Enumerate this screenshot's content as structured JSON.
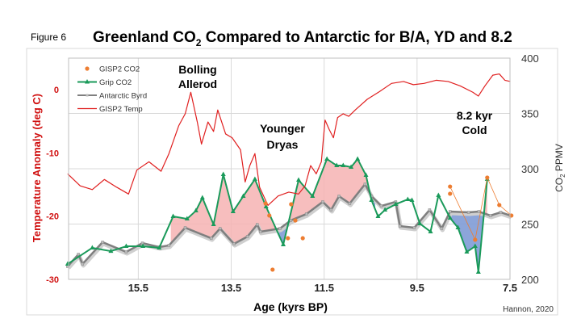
{
  "figure_label": "Figure 6",
  "credit": "Hannon, 2020",
  "chart_data": {
    "type": "line",
    "title": "Greenland CO",
    "title_sub": "2",
    "title_rest": " Compared to Antarctic for B/A, YD and 8.2",
    "xlabel": "Age (kyrs BP)",
    "ylabel_left": "Temperature Anomaly (deg C)",
    "ylabel_right": "CO",
    "ylabel_right_sub": "2",
    "ylabel_right_rest": " PPMV",
    "xlim": [
      17.0,
      7.5
    ],
    "ylim_left": [
      -30,
      5
    ],
    "ylim_right": [
      200,
      400
    ],
    "xticks": [
      "15.5",
      "13.5",
      "11.5",
      "9.5",
      "7.5"
    ],
    "yticks_left": [
      "0",
      "-10",
      "-20",
      "-30"
    ],
    "yticks_right": [
      "400",
      "350",
      "300",
      "250",
      "200"
    ],
    "grid": true,
    "legend_placement": "top-left",
    "colors": {
      "gisp2_co2": "#ed7d31",
      "grip": "#1a9a5a",
      "byrd": "#7f7f7f",
      "temp": "#e02020",
      "pink": "#f6b3b3",
      "blue": "#7f9bd6",
      "left_axis": "#d01010"
    },
    "annotations": [
      {
        "line1": "Bolling",
        "line2": "Allerod"
      },
      {
        "line1": "Younger",
        "line2": "Dryas"
      },
      {
        "line1": "8.2 kyr",
        "line2": "Cold"
      }
    ],
    "series": [
      {
        "name": "GISP2 CO2",
        "axis": "right",
        "style": "dots",
        "x": [
          12.76,
          12.68,
          12.61,
          12.28,
          12.21,
          12.12,
          11.96,
          8.79,
          8.79,
          8.25,
          7.99,
          7.73,
          7.47
        ],
        "y": [
          268.6,
          257.7,
          208.8,
          237.2,
          267.9,
          253.3,
          237.2,
          283.9,
          277.4,
          235.8,
          292.0,
          267.2,
          257.7
        ]
      },
      {
        "name": "Grip CO2",
        "axis": "right",
        "style": "line-triangle",
        "x": [
          17.02,
          16.49,
          16.09,
          15.76,
          15.4,
          15.05,
          14.75,
          14.45,
          14.26,
          14.12,
          13.88,
          13.67,
          13.46,
          13.24,
          12.99,
          12.75,
          12.38,
          12.05,
          11.75,
          11.44,
          11.23,
          11.09,
          10.92,
          10.78,
          10.6,
          10.48,
          10.34,
          10.19,
          9.96,
          9.7,
          9.61,
          9.44,
          9.21,
          9.04,
          8.79,
          8.62,
          8.43,
          8.25,
          8.18,
          7.99
        ],
        "y": [
          213.9,
          228.5,
          225.5,
          229.9,
          229.9,
          228.5,
          256.9,
          254.7,
          262.0,
          273.7,
          249.6,
          294.9,
          261.3,
          275.2,
          290.5,
          265.7,
          231.4,
          289.8,
          275.2,
          308.8,
          302.9,
          302.9,
          301.5,
          308.8,
          294.2,
          271.5,
          256.9,
          262.8,
          267.9,
          272.3,
          271.5,
          250.4,
          243.1,
          275.9,
          255.5,
          246.7,
          224.8,
          229.9,
          206.6,
          290.5
        ]
      },
      {
        "name": "Antarctic Byrd",
        "axis": "right",
        "style": "line-square",
        "x": [
          17.02,
          16.79,
          16.7,
          16.27,
          15.76,
          15.41,
          15.05,
          14.84,
          14.49,
          13.93,
          13.74,
          13.44,
          13.15,
          12.94,
          12.87,
          12.45,
          12.22,
          11.88,
          11.53,
          11.35,
          11.18,
          10.95,
          10.62,
          10.48,
          10.27,
          9.96,
          9.87,
          9.56,
          9.23,
          8.97,
          8.79,
          8.39,
          8.17,
          7.92,
          7.7,
          7.49
        ],
        "y": [
          211.7,
          222.6,
          213.9,
          233.6,
          224.8,
          232.8,
          229.2,
          230.7,
          246.7,
          237.2,
          246.0,
          232.1,
          238.7,
          249.6,
          243.1,
          246.0,
          253.3,
          259.1,
          270.1,
          262.8,
          275.2,
          268.6,
          286.1,
          275.2,
          266.4,
          270.1,
          248.2,
          246.7,
          262.8,
          246.0,
          261.3,
          260.6,
          261.3,
          257.7,
          260.6,
          257.7
        ]
      },
      {
        "name": "GISP2 Temp",
        "axis": "left",
        "style": "line",
        "x": [
          17.02,
          16.75,
          16.49,
          16.23,
          15.97,
          15.71,
          15.53,
          15.27,
          15.01,
          14.84,
          14.63,
          14.49,
          14.37,
          14.23,
          14.14,
          14.0,
          13.88,
          13.79,
          13.62,
          13.48,
          13.3,
          13.2,
          13.1,
          12.99,
          12.89,
          12.71,
          12.49,
          12.26,
          12.05,
          11.91,
          11.79,
          11.67,
          11.56,
          11.48,
          11.39,
          11.3,
          11.21,
          11.09,
          10.97,
          10.83,
          10.57,
          10.31,
          10.05,
          9.79,
          9.58,
          9.35,
          9.09,
          8.83,
          8.57,
          8.3,
          8.18,
          8.04,
          7.87,
          7.73,
          7.61,
          7.49
        ],
        "y": [
          -13.3,
          -15.2,
          -15.8,
          -14.2,
          -15.4,
          -16.5,
          -12.7,
          -11.4,
          -12.9,
          -10.1,
          -5.7,
          -3.8,
          -0.4,
          -5.1,
          -8.6,
          -5.1,
          -6.6,
          -3.2,
          -7.0,
          -7.6,
          -9.5,
          -14.6,
          -12.0,
          -10.1,
          -15.4,
          -18.3,
          -16.8,
          -16.2,
          -16.5,
          -15.2,
          -12.0,
          -13.3,
          -11.4,
          -4.8,
          -6.3,
          -7.6,
          -4.4,
          -3.8,
          -4.2,
          -3.2,
          -1.5,
          -0.3,
          1.0,
          1.3,
          0.8,
          1.0,
          1.5,
          1.3,
          0.6,
          -0.4,
          -1.0,
          0.6,
          2.3,
          2.5,
          1.5,
          1.3
        ]
      }
    ]
  }
}
